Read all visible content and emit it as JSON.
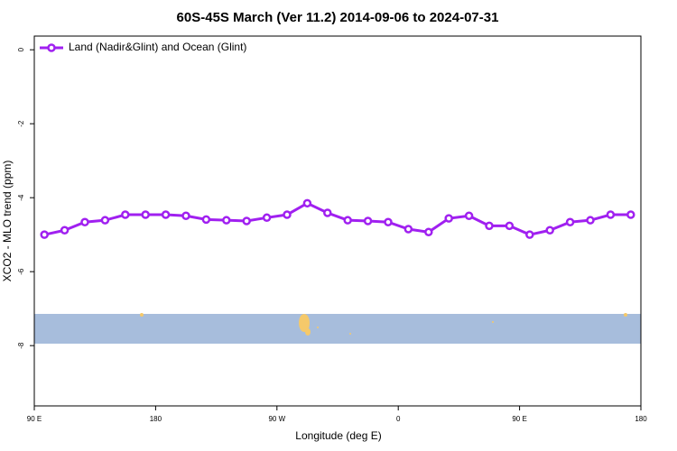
{
  "chart_data": {
    "type": "line",
    "title": "60S-45S March (Ver 11.2)   2014-09-06 to 2024-07-31",
    "x_label": "Longitude (deg E)",
    "y_label": "XCO2 - MLO trend (ppm)",
    "x": [
      97.5,
      112.5,
      127.5,
      142.5,
      157.5,
      172.5,
      187.5,
      202.5,
      217.5,
      232.5,
      247.5,
      262.5,
      277.5,
      292.5,
      307.5,
      322.5,
      337.5,
      352.5,
      367.5,
      382.5,
      397.5,
      412.5,
      427.5,
      442.5,
      457.5,
      472.5,
      487.5,
      502.5,
      517.5,
      532.5
    ],
    "series": [
      {
        "name": "Land (Nadir&Glint) and Ocean (Glint)",
        "color": "#a020f0",
        "values": [
          -5.0,
          -4.88,
          -4.66,
          -4.61,
          -4.46,
          -4.46,
          -4.46,
          -4.49,
          -4.59,
          -4.61,
          -4.63,
          -4.54,
          -4.46,
          -4.15,
          -4.41,
          -4.61,
          -4.63,
          -4.66,
          -4.85,
          -4.93,
          -4.56,
          -4.49,
          -4.76,
          -4.76,
          -5.0,
          -4.88,
          -4.66,
          -4.61,
          -4.46,
          -4.46
        ]
      }
    ],
    "xlim": [
      90,
      540
    ],
    "xticks": [
      {
        "value": 90,
        "label": "90 E"
      },
      180,
      {
        "value": 270,
        "label": "90 W"
      },
      {
        "value": 360,
        "label": "0"
      },
      {
        "value": 450,
        "label": "90 E"
      },
      {
        "value": 540,
        "label": "180"
      }
    ],
    "ylim": [
      -9.63,
      0.37
    ],
    "yticks": [
      0,
      -2,
      -4,
      -6,
      -8
    ],
    "legend": "top-left"
  }
}
